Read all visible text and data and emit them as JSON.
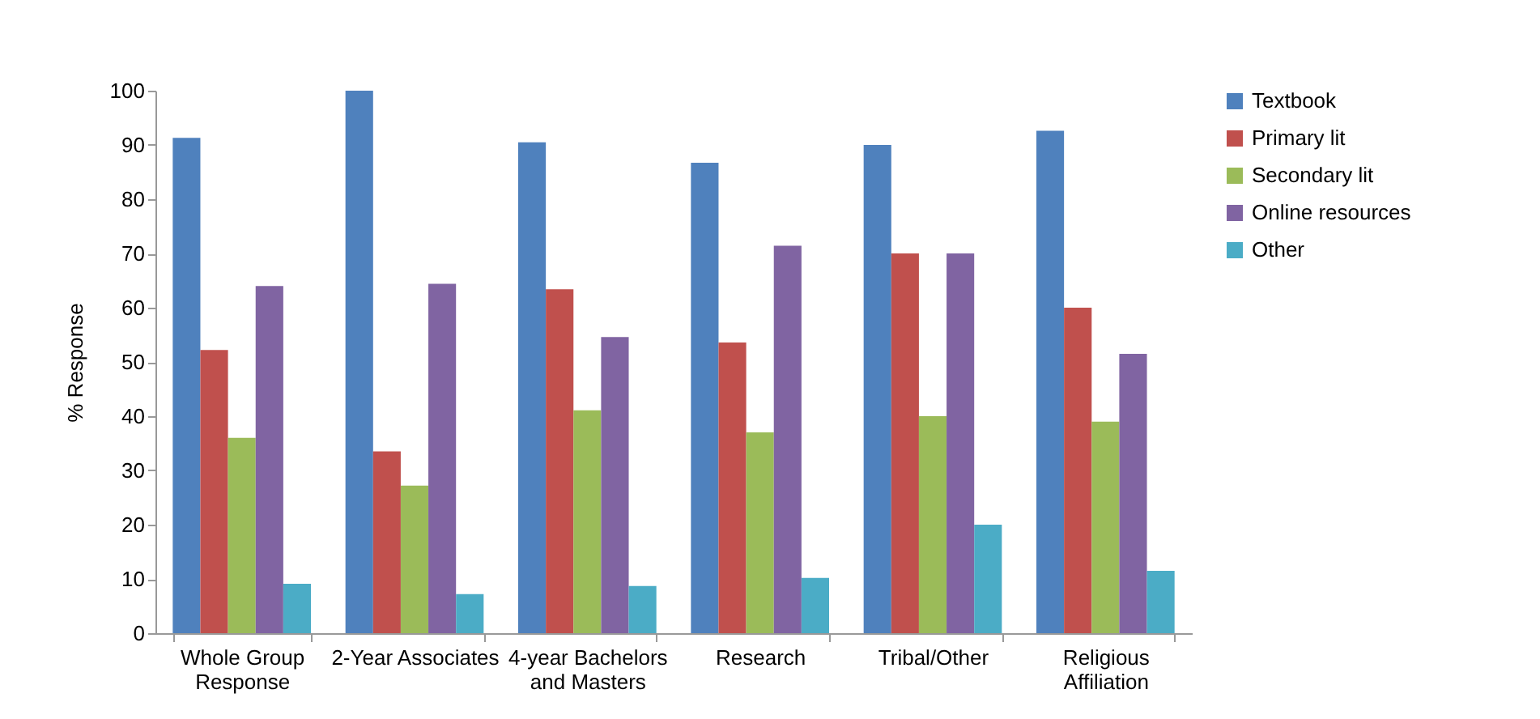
{
  "chart_data": {
    "type": "bar",
    "ylabel": "% Response",
    "categories": [
      "Whole Group Response",
      "2-Year Associates",
      "4-year Bachelors and Masters",
      "Research",
      "Tribal/Other",
      "Religious Affiliation"
    ],
    "series": [
      {
        "name": "Textbook",
        "color": "#4f81bd",
        "values": [
          91.3,
          100,
          90.5,
          86.7,
          90,
          92.6
        ]
      },
      {
        "name": "Primary lit",
        "color": "#c0504d",
        "values": [
          52.2,
          33.5,
          63.4,
          53.6,
          70,
          60
        ]
      },
      {
        "name": "Secondary lit",
        "color": "#9bbb59",
        "values": [
          36,
          27.2,
          41.1,
          37,
          40,
          39
        ]
      },
      {
        "name": "Online resources",
        "color": "#8064a2",
        "values": [
          64,
          64.4,
          54.6,
          71.4,
          70,
          51.5
        ]
      },
      {
        "name": "Other",
        "color": "#4bacc6",
        "values": [
          9.1,
          7.2,
          8.7,
          10.2,
          20,
          11.5
        ]
      }
    ],
    "ylim": [
      0,
      100
    ],
    "yticks": [
      0,
      10,
      20,
      30,
      40,
      50,
      60,
      70,
      80,
      90,
      100
    ],
    "legend": "top right"
  }
}
